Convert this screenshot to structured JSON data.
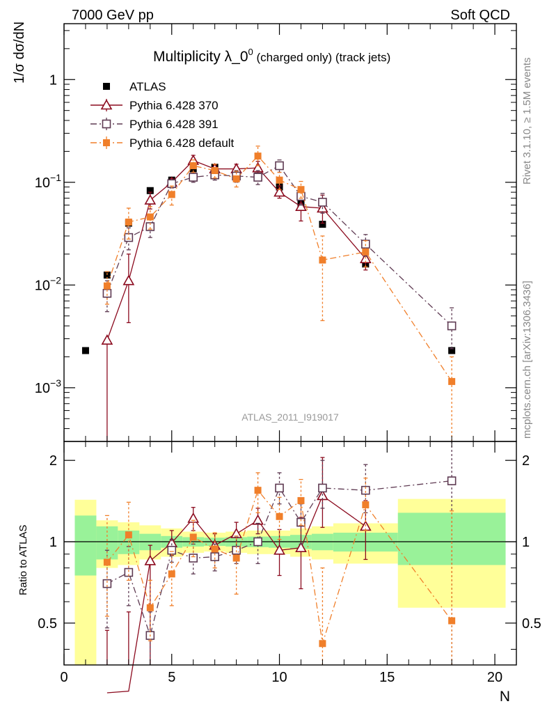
{
  "header": {
    "energy": "7000 GeV pp",
    "process": "Soft QCD"
  },
  "side_labels": {
    "rivet": "Rivet 3.1.10, ≥ 1.5M events",
    "mcplots": "mcplots.cern.ch [arXiv:1306.3436]"
  },
  "chart_data": [
    {
      "type": "scatter",
      "title": "Multiplicity λ_0",
      "title_sup": "0",
      "title_suffix": " (charged only) (track jets)",
      "ylabel": "1/σ dσ/dN",
      "ylim": [
        0.0003,
        3.5
      ],
      "yscale": "log",
      "xlim": [
        0,
        21
      ],
      "yticks": [
        {
          "value": 1,
          "label": "1"
        },
        {
          "value": 0.1,
          "label": "10",
          "exp": "−1"
        },
        {
          "value": 0.01,
          "label": "10",
          "exp": "−2"
        },
        {
          "value": 0.001,
          "label": "10",
          "exp": "−3"
        }
      ],
      "analysis_id": "ATLAS_2011_I919017",
      "legend": [
        {
          "name": "ATLAS",
          "color": "#000000",
          "marker": "filled-square"
        },
        {
          "name": "Pythia 6.428 370",
          "color": "#8b0a1e",
          "marker": "open-triangle"
        },
        {
          "name": "Pythia 6.428 391",
          "color": "#5e3a52",
          "marker": "open-square"
        },
        {
          "name": "Pythia 6.428 default",
          "color": "#f07f2a",
          "marker": "filled-square"
        }
      ],
      "series": [
        {
          "name": "ATLAS",
          "x": [
            1,
            2,
            3,
            4,
            5,
            6,
            7,
            8,
            9,
            10,
            11,
            12,
            14,
            18
          ],
          "y": [
            0.0023,
            0.0125,
            0.04,
            0.083,
            0.105,
            0.135,
            0.14,
            0.125,
            0.115,
            0.09,
            0.062,
            0.039,
            0.016,
            0.0023
          ]
        },
        {
          "name": "Pythia 6.428 370",
          "x": [
            2,
            3,
            4,
            5,
            6,
            7,
            8,
            9,
            10,
            11,
            12,
            14
          ],
          "y": [
            0.0029,
            0.011,
            0.067,
            0.1,
            0.163,
            0.135,
            0.135,
            0.138,
            0.08,
            0.058,
            0.056,
            0.018
          ],
          "err": [
            [
              0.0,
              0.0029
            ],
            [
              0.0043,
              0.02
            ],
            [
              0.055,
              0.08
            ],
            [
              0.092,
              0.108
            ],
            [
              0.145,
              0.183
            ],
            [
              0.12,
              0.15
            ],
            [
              0.12,
              0.15
            ],
            [
              0.12,
              0.16
            ],
            [
              0.07,
              0.092
            ],
            [
              0.042,
              0.075
            ],
            [
              0.04,
              0.075
            ],
            [
              0.014,
              0.023
            ]
          ]
        },
        {
          "name": "Pythia 6.428 391",
          "x": [
            2,
            3,
            4,
            5,
            6,
            7,
            8,
            9,
            10,
            11,
            12,
            14,
            18
          ],
          "y": [
            0.0083,
            0.029,
            0.037,
            0.097,
            0.112,
            0.118,
            0.115,
            0.112,
            0.145,
            0.073,
            0.064,
            0.025,
            0.004
          ],
          "err": [
            [
              0.0055,
              0.011
            ],
            [
              0.022,
              0.036
            ],
            [
              0.029,
              0.046
            ],
            [
              0.088,
              0.106
            ],
            [
              0.1,
              0.125
            ],
            [
              0.105,
              0.131
            ],
            [
              0.1,
              0.13
            ],
            [
              0.095,
              0.13
            ],
            [
              0.125,
              0.165
            ],
            [
              0.06,
              0.087
            ],
            [
              0.05,
              0.078
            ],
            [
              0.019,
              0.031
            ],
            [
              0.0024,
              0.006
            ]
          ]
        },
        {
          "name": "Pythia 6.428 default",
          "x": [
            2,
            3,
            4,
            5,
            6,
            7,
            8,
            9,
            10,
            11,
            12,
            14,
            18
          ],
          "y": [
            0.0098,
            0.041,
            0.046,
            0.076,
            0.145,
            0.13,
            0.108,
            0.18,
            0.105,
            0.085,
            0.0175,
            0.021,
            0.00115
          ],
          "err": [
            [
              0.0065,
              0.0135
            ],
            [
              0.028,
              0.056
            ],
            [
              0.035,
              0.058
            ],
            [
              0.06,
              0.092
            ],
            [
              0.125,
              0.165
            ],
            [
              0.11,
              0.15
            ],
            [
              0.09,
              0.128
            ],
            [
              0.145,
              0.225
            ],
            [
              0.085,
              0.125
            ],
            [
              0.07,
              0.102
            ],
            [
              0.0045,
              0.03
            ],
            [
              0.015,
              0.027
            ],
            [
              0.00025,
              0.002
            ]
          ]
        }
      ]
    },
    {
      "type": "scatter",
      "title": "",
      "ylabel": "Ratio to ATLAS",
      "xlabel": "N",
      "ylim": [
        0.35,
        2.35
      ],
      "xlim": [
        0,
        21
      ],
      "xticks": [
        0,
        5,
        10,
        15,
        20
      ],
      "yticks": [
        0.5,
        1,
        1.5,
        2
      ],
      "ytick_labels": [
        "0.5",
        "1",
        "",
        "2"
      ],
      "bands": [
        {
          "x0": 0.5,
          "x1": 1.5,
          "green": [
            0.75,
            1.25
          ],
          "yellow": [
            0.35,
            1.43
          ]
        },
        {
          "x0": 1.5,
          "x1": 2.5,
          "green": [
            0.86,
            1.14
          ],
          "yellow": [
            0.8,
            1.2
          ]
        },
        {
          "x0": 2.5,
          "x1": 3.5,
          "green": [
            0.9,
            1.1
          ],
          "yellow": [
            0.82,
            1.18
          ]
        },
        {
          "x0": 3.5,
          "x1": 4.5,
          "green": [
            0.93,
            1.07
          ],
          "yellow": [
            0.86,
            1.15
          ]
        },
        {
          "x0": 4.5,
          "x1": 5.5,
          "green": [
            0.95,
            1.05
          ],
          "yellow": [
            0.88,
            1.12
          ]
        },
        {
          "x0": 5.5,
          "x1": 6.5,
          "green": [
            0.96,
            1.04
          ],
          "yellow": [
            0.91,
            1.09
          ]
        },
        {
          "x0": 6.5,
          "x1": 7.5,
          "green": [
            0.965,
            1.035
          ],
          "yellow": [
            0.92,
            1.08
          ]
        },
        {
          "x0": 7.5,
          "x1": 8.5,
          "green": [
            0.96,
            1.04
          ],
          "yellow": [
            0.91,
            1.09
          ]
        },
        {
          "x0": 8.5,
          "x1": 9.5,
          "green": [
            0.955,
            1.045
          ],
          "yellow": [
            0.9,
            1.1
          ]
        },
        {
          "x0": 9.5,
          "x1": 10.5,
          "green": [
            0.95,
            1.05
          ],
          "yellow": [
            0.9,
            1.1
          ]
        },
        {
          "x0": 10.5,
          "x1": 11.5,
          "green": [
            0.94,
            1.06
          ],
          "yellow": [
            0.88,
            1.12
          ]
        },
        {
          "x0": 11.5,
          "x1": 12.5,
          "green": [
            0.93,
            1.07
          ],
          "yellow": [
            0.86,
            1.14
          ]
        },
        {
          "x0": 12.5,
          "x1": 15.5,
          "green": [
            0.92,
            1.08
          ],
          "yellow": [
            0.83,
            1.17
          ]
        },
        {
          "x0": 15.5,
          "x1": 20.5,
          "green": [
            0.82,
            1.28
          ],
          "yellow": [
            0.57,
            1.44
          ]
        }
      ],
      "series": [
        {
          "name": "Pythia 6.428 370",
          "x": [
            2,
            3,
            4,
            5,
            6,
            7,
            8,
            9,
            10,
            11,
            12,
            14
          ],
          "y": [
            0.23,
            0.28,
            0.85,
            0.99,
            1.22,
            0.97,
            1.07,
            1.2,
            0.93,
            0.95,
            1.48,
            1.14
          ],
          "err": [
            [
              0.0,
              0.47
            ],
            [
              0.0,
              0.55
            ],
            [
              0.2,
              0.97
            ],
            [
              0.89,
              1.1
            ],
            [
              1.1,
              1.34
            ],
            [
              0.87,
              1.07
            ],
            [
              0.96,
              1.18
            ],
            [
              1.07,
              1.33
            ],
            [
              0.75,
              1.11
            ],
            [
              0.67,
              1.23
            ],
            [
              1.13,
              2.05
            ],
            [
              0.86,
              1.42
            ]
          ]
        },
        {
          "name": "Pythia 6.428 391",
          "x": [
            2,
            3,
            4,
            5,
            6,
            7,
            8,
            9,
            10,
            11,
            12,
            14,
            18
          ],
          "y": [
            0.7,
            0.77,
            0.45,
            0.93,
            0.87,
            0.88,
            0.93,
            1.0,
            1.58,
            1.18,
            1.58,
            1.55,
            1.68
          ],
          "err": [
            [
              0.48,
              0.93
            ],
            [
              0.58,
              0.96
            ],
            [
              0.34,
              0.55
            ],
            [
              0.84,
              1.02
            ],
            [
              0.76,
              0.98
            ],
            [
              0.78,
              0.98
            ],
            [
              0.83,
              1.04
            ],
            [
              0.83,
              1.17
            ],
            [
              1.38,
              1.8
            ],
            [
              0.98,
              1.38
            ],
            [
              1.33,
              2.0
            ],
            [
              1.28,
              1.93
            ],
            [
              0.35,
              2.35
            ]
          ]
        },
        {
          "name": "Pythia 6.428 default",
          "x": [
            2,
            3,
            4,
            5,
            6,
            7,
            8,
            9,
            10,
            11,
            12,
            14,
            18
          ],
          "y": [
            0.84,
            1.06,
            0.57,
            0.76,
            1.04,
            0.94,
            0.87,
            1.55,
            1.24,
            1.42,
            0.42,
            1.37,
            0.51
          ],
          "err": [
            [
              0.53,
              1.25
            ],
            [
              0.72,
              1.4
            ],
            [
              0.43,
              0.72
            ],
            [
              0.58,
              0.92
            ],
            [
              0.88,
              1.2
            ],
            [
              0.8,
              1.08
            ],
            [
              0.64,
              1.05
            ],
            [
              1.28,
              1.8
            ],
            [
              1.02,
              1.46
            ],
            [
              1.15,
              1.7
            ],
            [
              0.35,
              0.8
            ],
            [
              1.1,
              1.72
            ],
            [
              0.35,
              1.3
            ]
          ]
        }
      ]
    }
  ]
}
